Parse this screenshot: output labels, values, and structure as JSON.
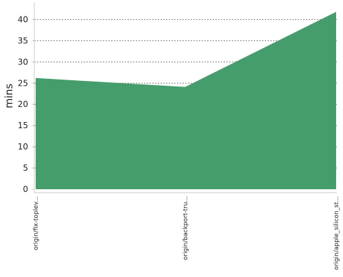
{
  "chart_data": {
    "type": "area",
    "categories": [
      "origin/fix-toplev...",
      "origin/backport-tru...",
      "origin/apple_silicon_st..."
    ],
    "values": [
      26.2,
      24.1,
      41.8
    ],
    "xlabel": "",
    "ylabel": "mins",
    "ylim": [
      0,
      42
    ],
    "yticks": [
      0,
      5,
      10,
      15,
      20,
      25,
      30,
      35,
      40
    ],
    "grid": true,
    "legend": "none",
    "fill_color": "#469d6c",
    "grid_color": "#777777",
    "axis_color": "#c8c8c8"
  }
}
